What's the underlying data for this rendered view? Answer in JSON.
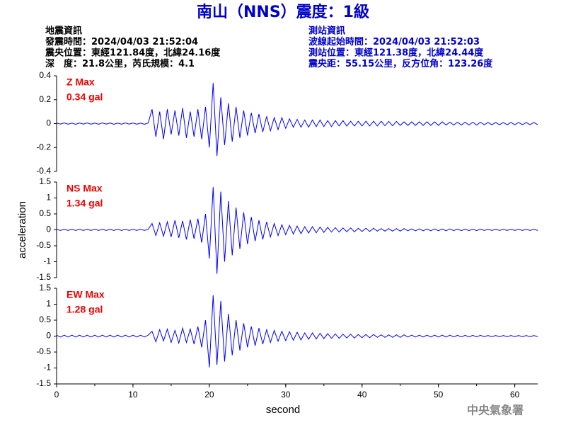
{
  "header": {
    "title": "南山（NNS）震度：1級",
    "left": [
      "地震資訊",
      "發震時間：2024/04/03 21:52:04",
      "震央位置：東經121.84度，北緯24.16度",
      "深　度：21.8公里，芮氏規模：4.1"
    ],
    "right": [
      "測站資訊",
      "波線起始時間：2024/04/03 21:52:03",
      "測站位置：東經121.38度，北緯24.44度",
      "震央距：55.15公里，反方位角：123.26度"
    ],
    "footer": "中央氣象署"
  },
  "chart_data": [
    {
      "type": "line",
      "color": "#0000ff",
      "annotations": [
        "Z Max",
        "0.34 gal"
      ],
      "xlim": [
        0,
        63
      ],
      "ylim": [
        -0.4,
        0.4
      ],
      "yticks": [
        -0.4,
        -0.2,
        0,
        0.2,
        0.4
      ],
      "x": [
        0,
        0.5,
        1,
        1.5,
        2,
        2.5,
        3,
        3.5,
        4,
        4.5,
        5,
        5.5,
        6,
        6.5,
        7,
        7.5,
        8,
        8.5,
        9,
        9.5,
        10,
        10.5,
        11,
        11.5,
        12,
        12.5,
        13,
        13.5,
        14,
        14.5,
        15,
        15.5,
        16,
        16.5,
        17,
        17.5,
        18,
        18.5,
        19,
        19.5,
        20,
        20.5,
        21,
        21.5,
        22,
        22.5,
        23,
        23.5,
        24,
        24.5,
        25,
        25.5,
        26,
        26.5,
        27,
        27.5,
        28,
        28.5,
        29,
        29.5,
        30,
        30.5,
        31,
        31.5,
        32,
        32.5,
        33,
        33.5,
        34,
        34.5,
        35,
        35.5,
        36,
        36.5,
        37,
        37.5,
        38,
        38.5,
        39,
        39.5,
        40,
        40.5,
        41,
        41.5,
        42,
        42.5,
        43,
        43.5,
        44,
        44.5,
        45,
        45.5,
        46,
        46.5,
        47,
        47.5,
        48,
        48.5,
        49,
        49.5,
        50,
        50.5,
        51,
        51.5,
        52,
        52.5,
        53,
        53.5,
        54,
        54.5,
        55,
        55.5,
        56,
        56.5,
        57,
        57.5,
        58,
        58.5,
        59,
        59.5,
        60,
        60.5,
        61,
        61.5,
        62,
        62.5,
        63
      ],
      "values": [
        0.005,
        -0.004,
        0.006,
        -0.005,
        0.004,
        -0.006,
        0.005,
        -0.004,
        0.006,
        -0.005,
        0.004,
        -0.005,
        0.006,
        -0.004,
        0.005,
        -0.006,
        0.004,
        -0.005,
        0.006,
        -0.004,
        0.005,
        -0.005,
        0.004,
        -0.006,
        0.005,
        0.12,
        -0.11,
        0.1,
        -0.13,
        0.12,
        -0.09,
        0.11,
        -0.1,
        0.13,
        -0.12,
        0.1,
        -0.11,
        0.12,
        -0.13,
        0.14,
        -0.2,
        0.34,
        -0.27,
        0.22,
        -0.18,
        0.17,
        -0.15,
        0.14,
        -0.12,
        0.11,
        -0.1,
        0.09,
        -0.08,
        0.08,
        -0.07,
        0.06,
        -0.06,
        0.05,
        -0.05,
        0.05,
        -0.04,
        0.04,
        -0.03,
        0.035,
        -0.03,
        0.03,
        -0.03,
        0.03,
        -0.025,
        0.03,
        -0.025,
        0.025,
        -0.025,
        0.025,
        -0.02,
        0.025,
        -0.02,
        0.02,
        -0.02,
        0.02,
        -0.02,
        0.02,
        -0.02,
        0.02,
        -0.02,
        0.02,
        -0.018,
        0.018,
        -0.018,
        0.018,
        -0.015,
        0.015,
        -0.015,
        0.015,
        -0.015,
        0.015,
        -0.015,
        0.015,
        -0.015,
        0.015,
        -0.015,
        0.015,
        -0.012,
        0.012,
        -0.012,
        0.012,
        -0.012,
        0.012,
        -0.012,
        0.012,
        -0.012,
        0.012,
        -0.01,
        0.01,
        -0.01,
        0.01,
        -0.01,
        0.01,
        -0.01,
        0.01,
        -0.01,
        0.01,
        -0.01,
        0.01,
        -0.01,
        0.01,
        -0.01
      ]
    },
    {
      "type": "line",
      "color": "#0000ff",
      "annotations": [
        "NS Max",
        "1.34 gal"
      ],
      "ylabel": "acceleration",
      "xlim": [
        0,
        63
      ],
      "ylim": [
        -1.5,
        1.5
      ],
      "yticks": [
        -1.5,
        -1,
        -0.5,
        0,
        0.5,
        1,
        1.5
      ],
      "x": [
        0,
        0.5,
        1,
        1.5,
        2,
        2.5,
        3,
        3.5,
        4,
        4.5,
        5,
        5.5,
        6,
        6.5,
        7,
        7.5,
        8,
        8.5,
        9,
        9.5,
        10,
        10.5,
        11,
        11.5,
        12,
        12.5,
        13,
        13.5,
        14,
        14.5,
        15,
        15.5,
        16,
        16.5,
        17,
        17.5,
        18,
        18.5,
        19,
        19.5,
        20,
        20.5,
        21,
        21.5,
        22,
        22.5,
        23,
        23.5,
        24,
        24.5,
        25,
        25.5,
        26,
        26.5,
        27,
        27.5,
        28,
        28.5,
        29,
        29.5,
        30,
        30.5,
        31,
        31.5,
        32,
        32.5,
        33,
        33.5,
        34,
        34.5,
        35,
        35.5,
        36,
        36.5,
        37,
        37.5,
        38,
        38.5,
        39,
        39.5,
        40,
        40.5,
        41,
        41.5,
        42,
        42.5,
        43,
        43.5,
        44,
        44.5,
        45,
        45.5,
        46,
        46.5,
        47,
        47.5,
        48,
        48.5,
        49,
        49.5,
        50,
        50.5,
        51,
        51.5,
        52,
        52.5,
        53,
        53.5,
        54,
        54.5,
        55,
        55.5,
        56,
        56.5,
        57,
        57.5,
        58,
        58.5,
        59,
        59.5,
        60,
        60.5,
        61,
        61.5,
        62,
        62.5,
        63
      ],
      "values": [
        0.02,
        -0.02,
        0.02,
        -0.02,
        0.02,
        -0.02,
        0.02,
        -0.02,
        0.02,
        -0.02,
        0.02,
        -0.02,
        0.02,
        -0.02,
        0.02,
        -0.02,
        0.02,
        -0.02,
        0.02,
        -0.02,
        0.02,
        -0.02,
        0.02,
        -0.02,
        0.02,
        0.2,
        -0.18,
        0.22,
        -0.2,
        0.25,
        -0.22,
        0.3,
        -0.25,
        0.28,
        -0.3,
        0.32,
        -0.28,
        0.35,
        -0.4,
        0.5,
        -0.9,
        1.34,
        -1.38,
        1.2,
        -1.0,
        0.9,
        -0.8,
        0.7,
        -0.6,
        0.55,
        -0.45,
        0.4,
        -0.35,
        0.3,
        -0.3,
        0.25,
        -0.22,
        0.2,
        -0.18,
        0.16,
        -0.15,
        0.14,
        -0.13,
        0.12,
        -0.12,
        0.1,
        -0.1,
        0.1,
        -0.09,
        0.09,
        -0.08,
        0.08,
        -0.07,
        0.07,
        -0.07,
        0.06,
        -0.06,
        0.06,
        -0.06,
        0.05,
        -0.05,
        0.05,
        -0.05,
        0.05,
        -0.04,
        0.04,
        -0.04,
        0.04,
        -0.04,
        0.04,
        -0.04,
        0.04,
        -0.03,
        0.03,
        -0.03,
        0.03,
        -0.03,
        0.03,
        -0.03,
        0.03,
        -0.03,
        0.03,
        -0.03,
        0.03,
        -0.025,
        0.025,
        -0.025,
        0.025,
        -0.025,
        0.025,
        -0.025,
        0.025,
        -0.02,
        0.02,
        -0.02,
        0.02,
        -0.02,
        0.02,
        -0.02,
        0.02,
        -0.02,
        0.02,
        -0.02,
        0.02,
        -0.02,
        0.02,
        -0.02
      ]
    },
    {
      "type": "line",
      "color": "#0000ff",
      "annotations": [
        "EW Max",
        "1.28 gal"
      ],
      "xlabel": "second",
      "xlim": [
        0,
        63
      ],
      "xticks": [
        0,
        10,
        20,
        30,
        40,
        50,
        60
      ],
      "ylim": [
        -1.5,
        1.5
      ],
      "yticks": [
        -1.5,
        -1,
        -0.5,
        0,
        0.5,
        1,
        1.5
      ],
      "x": [
        0,
        0.5,
        1,
        1.5,
        2,
        2.5,
        3,
        3.5,
        4,
        4.5,
        5,
        5.5,
        6,
        6.5,
        7,
        7.5,
        8,
        8.5,
        9,
        9.5,
        10,
        10.5,
        11,
        11.5,
        12,
        12.5,
        13,
        13.5,
        14,
        14.5,
        15,
        15.5,
        16,
        16.5,
        17,
        17.5,
        18,
        18.5,
        19,
        19.5,
        20,
        20.5,
        21,
        21.5,
        22,
        22.5,
        23,
        23.5,
        24,
        24.5,
        25,
        25.5,
        26,
        26.5,
        27,
        27.5,
        28,
        28.5,
        29,
        29.5,
        30,
        30.5,
        31,
        31.5,
        32,
        32.5,
        33,
        33.5,
        34,
        34.5,
        35,
        35.5,
        36,
        36.5,
        37,
        37.5,
        38,
        38.5,
        39,
        39.5,
        40,
        40.5,
        41,
        41.5,
        42,
        42.5,
        43,
        43.5,
        44,
        44.5,
        45,
        45.5,
        46,
        46.5,
        47,
        47.5,
        48,
        48.5,
        49,
        49.5,
        50,
        50.5,
        51,
        51.5,
        52,
        52.5,
        53,
        53.5,
        54,
        54.5,
        55,
        55.5,
        56,
        56.5,
        57,
        57.5,
        58,
        58.5,
        59,
        59.5,
        60,
        60.5,
        61,
        61.5,
        62,
        62.5,
        63
      ],
      "values": [
        0.03,
        -0.03,
        0.03,
        -0.03,
        0.03,
        -0.03,
        0.03,
        -0.03,
        0.03,
        -0.03,
        0.03,
        -0.03,
        0.03,
        -0.03,
        0.03,
        -0.03,
        0.03,
        -0.03,
        0.03,
        -0.03,
        0.03,
        -0.03,
        0.03,
        -0.03,
        0.03,
        0.15,
        -0.18,
        0.2,
        -0.15,
        0.22,
        -0.2,
        0.18,
        -0.22,
        0.25,
        -0.2,
        0.22,
        -0.25,
        0.3,
        -0.35,
        0.5,
        -0.98,
        1.28,
        -0.9,
        1.1,
        -0.8,
        0.7,
        -0.6,
        0.5,
        -0.45,
        0.4,
        -0.35,
        0.3,
        -0.3,
        0.25,
        -0.25,
        0.2,
        -0.2,
        0.18,
        -0.16,
        0.15,
        -0.14,
        0.14,
        -0.13,
        0.12,
        -0.12,
        0.1,
        -0.1,
        0.1,
        -0.09,
        0.09,
        -0.08,
        0.08,
        -0.07,
        0.07,
        -0.07,
        0.06,
        -0.06,
        0.06,
        -0.06,
        0.05,
        -0.05,
        0.05,
        -0.05,
        0.05,
        -0.04,
        0.04,
        -0.04,
        0.04,
        -0.04,
        0.04,
        -0.04,
        0.04,
        -0.03,
        0.03,
        -0.03,
        0.03,
        -0.03,
        0.03,
        -0.03,
        0.03,
        -0.03,
        0.03,
        -0.03,
        0.03,
        -0.025,
        0.025,
        -0.025,
        0.025,
        -0.025,
        0.025,
        -0.025,
        0.025,
        -0.02,
        0.02,
        -0.02,
        0.02,
        -0.02,
        0.02,
        -0.02,
        0.02,
        -0.02,
        0.02,
        -0.02,
        0.02,
        -0.02,
        0.02,
        -0.02
      ]
    }
  ]
}
